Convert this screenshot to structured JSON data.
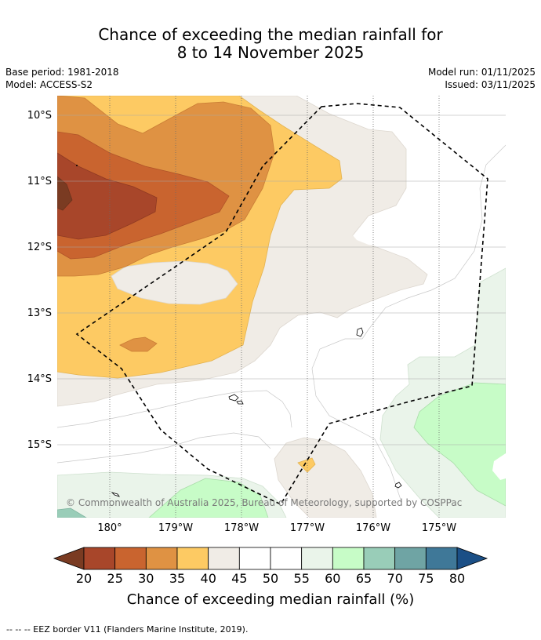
{
  "title": {
    "line1": "Chance of exceeding the median rainfall for",
    "line2": "8 to 14 November 2025"
  },
  "meta": {
    "base_period": "Base period: 1981-2018",
    "model": "Model: ACCESS-S2",
    "model_run": "Model run: 01/11/2025",
    "issued": "Issued: 03/11/2025"
  },
  "map": {
    "lat_labels": [
      "10°S",
      "11°S",
      "12°S",
      "13°S",
      "14°S",
      "15°S"
    ],
    "lon_labels": [
      "180°",
      "179°W",
      "178°W",
      "177°W",
      "176°W",
      "175°W"
    ],
    "copyright": "© Commonwealth of Australia 2025, Bureau of Meteorology, supported by COSPPac"
  },
  "colorbar": {
    "title": "Chance of exceeding median rainfall (%)",
    "ticks": [
      "20",
      "25",
      "30",
      "35",
      "40",
      "45",
      "50",
      "55",
      "60",
      "65",
      "70",
      "75",
      "80"
    ],
    "colors": [
      "#7a3b22",
      "#a8462a",
      "#c9642f",
      "#df9243",
      "#fdca63",
      "#f0ece6",
      "#ffffff",
      "#ffffff",
      "#eaf4ea",
      "#c7fcc7",
      "#99cdb8",
      "#6fa4a4",
      "#3f7898",
      "#1b4f86"
    ]
  },
  "footer": "--  --  -- EEZ border V11 (Flanders Marine Institute, 2019)."
}
